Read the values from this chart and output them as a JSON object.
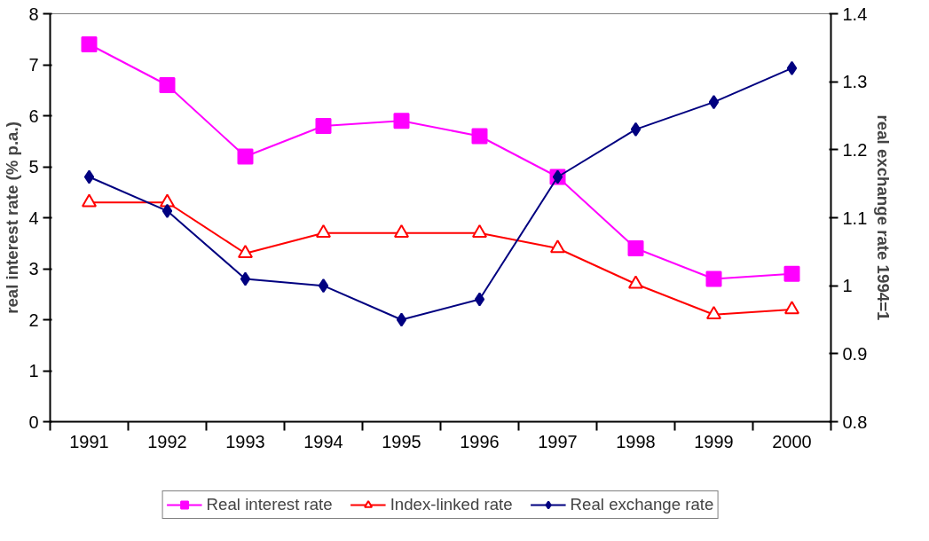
{
  "chart_data": {
    "type": "line",
    "categories": [
      "1991",
      "1992",
      "1993",
      "1994",
      "1995",
      "1996",
      "1997",
      "1998",
      "1999",
      "2000"
    ],
    "ylabel": "real interest rate (% p.a.)",
    "y2label": "real exchange rate 1994=1",
    "ylim": [
      0,
      8
    ],
    "yticks": [
      0,
      1,
      2,
      3,
      4,
      5,
      6,
      7,
      8
    ],
    "y2lim": [
      0.8,
      1.4
    ],
    "y2ticks": [
      {
        "value": 0.8,
        "label": "0.8"
      },
      {
        "value": 0.9,
        "label": "0.9"
      },
      {
        "value": 1.0,
        "label": "1"
      },
      {
        "value": 1.1,
        "label": "1.1"
      },
      {
        "value": 1.2,
        "label": "1.2"
      },
      {
        "value": 1.3,
        "label": "1.3"
      },
      {
        "value": 1.4,
        "label": "1.4"
      }
    ],
    "grid": false,
    "legend": "bottom",
    "series": [
      {
        "name": "Real interest rate",
        "color": "#ff00ff",
        "marker": "square",
        "values": [
          7.4,
          6.6,
          5.2,
          5.8,
          5.9,
          5.6,
          4.8,
          3.4,
          2.8,
          2.9
        ]
      },
      {
        "name": "Index-linked rate",
        "color": "#ff0000",
        "marker": "triangle",
        "values": [
          4.3,
          4.3,
          3.3,
          3.7,
          3.7,
          3.7,
          3.4,
          2.7,
          2.1,
          2.2
        ]
      },
      {
        "name": "Real exchange rate",
        "color": "#000080",
        "marker": "diamond",
        "axis": "y2",
        "values": [
          1.16,
          1.11,
          1.01,
          1.0,
          0.95,
          0.98,
          1.16,
          1.23,
          1.27,
          1.32
        ]
      }
    ]
  }
}
